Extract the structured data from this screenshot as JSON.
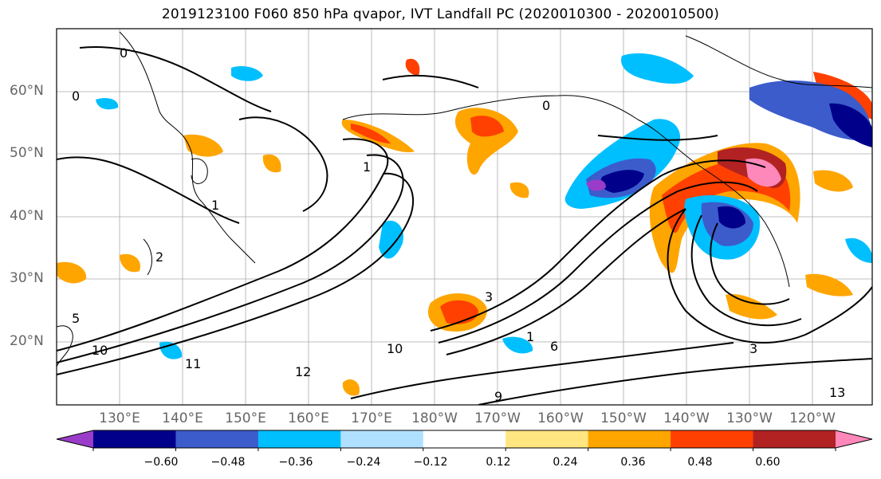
{
  "title": "2019123100 F060 850 hPa qvapor, IVT Landfall PC (2020010300 - 2020010500)",
  "lat_labels": [
    "60°N",
    "50°N",
    "40°N",
    "30°N",
    "20°N"
  ],
  "lon_labels": [
    "130°E",
    "140°E",
    "150°E",
    "160°E",
    "170°E",
    "180°W",
    "170°W",
    "160°W",
    "150°W",
    "140°W",
    "130°W",
    "120°W"
  ],
  "colorbar": {
    "colors": [
      "#9a3cc9",
      "#00008b",
      "#3c5ccc",
      "#00bfff",
      "#b0e0ff",
      "#ffffff",
      "#ffe680",
      "#ffa500",
      "#ff4000",
      "#b22222",
      "#ff88bb"
    ],
    "tick_labels": [
      "−0.60",
      "−0.48",
      "−0.36",
      "−0.24",
      "−0.12",
      "0.12",
      "0.24",
      "0.36",
      "0.48",
      "0.60"
    ]
  },
  "contour_labels": [
    "0",
    "0",
    "0",
    "1",
    "1",
    "1",
    "2",
    "3",
    "3",
    "5",
    "6",
    "9",
    "10",
    "10",
    "11",
    "12",
    "13"
  ]
}
